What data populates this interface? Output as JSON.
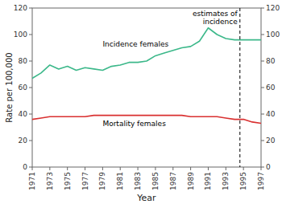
{
  "chart_data": {
    "type": "line",
    "x": [
      1971,
      1972,
      1973,
      1974,
      1975,
      1976,
      1977,
      1978,
      1979,
      1980,
      1981,
      1982,
      1983,
      1984,
      1985,
      1986,
      1987,
      1988,
      1989,
      1990,
      1991,
      1992,
      1993,
      1994,
      1995,
      1996,
      1997
    ],
    "series": [
      {
        "name": "Incidence females",
        "color": "#3cb88a",
        "values": [
          67,
          71,
          77,
          74,
          76,
          73,
          75,
          74,
          73,
          76,
          77,
          79,
          79,
          80,
          84,
          86,
          88,
          90,
          91,
          95,
          105,
          100,
          97,
          96,
          96,
          96,
          96
        ]
      },
      {
        "name": "Mortality females",
        "color": "#d93030",
        "values": [
          36,
          37,
          38,
          38,
          38,
          38,
          38,
          39,
          39,
          39,
          39,
          39,
          39,
          39,
          39,
          39,
          39,
          39,
          38,
          38,
          38,
          38,
          37,
          36,
          36,
          34,
          33
        ]
      }
    ],
    "xlabel": "Year",
    "ylabel": "Rate per 100,000",
    "xlim": [
      1971,
      1997
    ],
    "xticks": [
      1971,
      1973,
      1975,
      1977,
      1979,
      1981,
      1983,
      1985,
      1987,
      1989,
      1991,
      1993,
      1995,
      1997
    ],
    "ylim": [
      0,
      120
    ],
    "yticks": [
      0,
      20,
      40,
      60,
      80,
      100,
      120
    ],
    "y2lim": [
      0,
      120
    ],
    "y2ticks": [
      0,
      20,
      40,
      60,
      80,
      100,
      120
    ],
    "vlines": [
      {
        "x": 1994.6,
        "label": "estimates of\nincidence"
      }
    ],
    "grid": false
  }
}
